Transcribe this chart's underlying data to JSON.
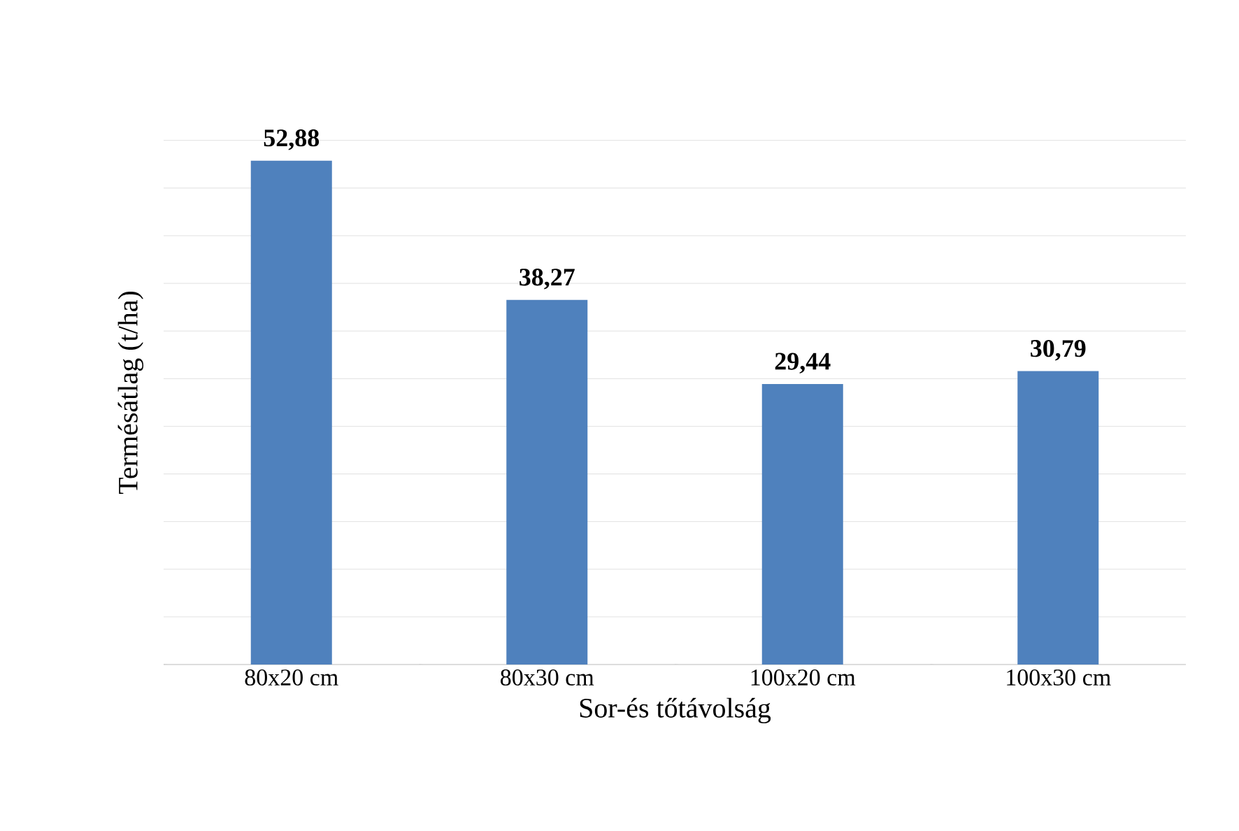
{
  "chart_data": {
    "type": "bar",
    "xlabel": "Sor-és tőtávolság",
    "ylabel": "Termésátlag (t/ha)",
    "categories": [
      "80x20 cm",
      "80x30 cm",
      "100x20 cm",
      "100x30 cm"
    ],
    "values": [
      52.88,
      38.27,
      29.44,
      30.79
    ],
    "value_labels": [
      "52,88",
      "38,27",
      "29,44",
      "30,79"
    ],
    "color": "#4f81bd",
    "grid": "y",
    "tick_labels": "x"
  }
}
